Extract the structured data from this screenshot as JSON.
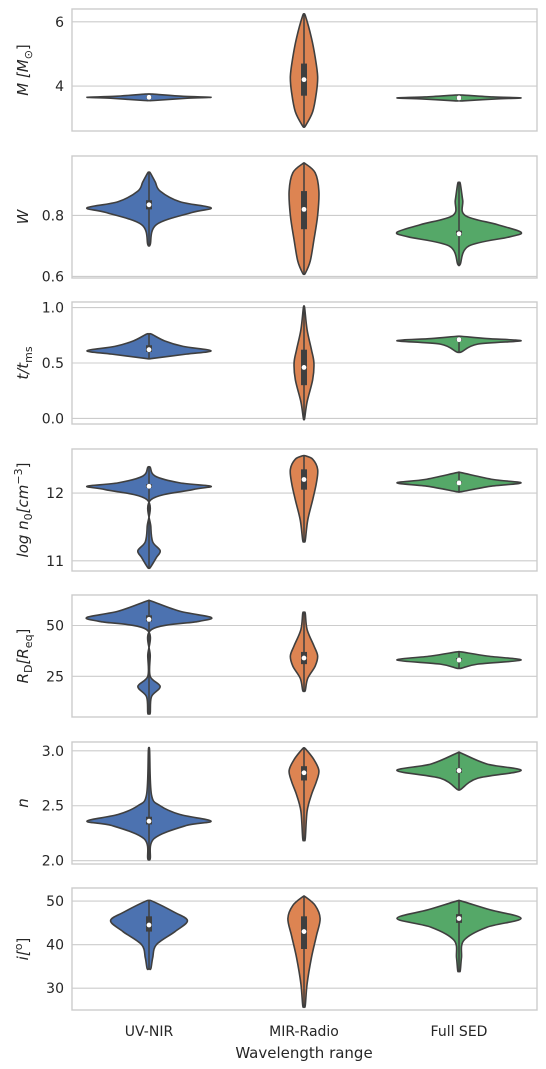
{
  "chart_data": {
    "type": "violin",
    "categories": [
      "UV-NIR",
      "MIR-Radio",
      "Full SED"
    ],
    "xlabel": "Wavelength range",
    "colors": {
      "UV-NIR": "#4c72b0",
      "MIR-Radio": "#dd8452",
      "Full SED": "#55a868"
    },
    "panels": [
      {
        "key": "M",
        "ylabel_main": "M [M",
        "ylabel_tail": "]",
        "ylabel_sub": "⊙",
        "ylim": [
          2.6,
          6.4
        ],
        "yticks": [
          4,
          6
        ],
        "violins": [
          {
            "category": "UV-NIR",
            "median": 3.65,
            "q1": 3.62,
            "q3": 3.68,
            "wmin": 3.55,
            "wmax": 3.75,
            "shape": [
              [
                3.55,
                0.08
              ],
              [
                3.62,
                0.62
              ],
              [
                3.65,
                1.0
              ],
              [
                3.68,
                0.55
              ],
              [
                3.75,
                0.06
              ]
            ]
          },
          {
            "category": "MIR-Radio",
            "median": 4.2,
            "q1": 3.7,
            "q3": 4.7,
            "wmin": 2.75,
            "wmax": 6.2,
            "shape": [
              [
                2.75,
                0.02
              ],
              [
                3.2,
                0.14
              ],
              [
                3.8,
                0.2
              ],
              [
                4.3,
                0.22
              ],
              [
                4.9,
                0.18
              ],
              [
                5.5,
                0.12
              ],
              [
                6.2,
                0.02
              ]
            ]
          },
          {
            "category": "Full SED",
            "median": 3.63,
            "q1": 3.6,
            "q3": 3.66,
            "wmin": 3.54,
            "wmax": 3.72,
            "shape": [
              [
                3.54,
                0.08
              ],
              [
                3.6,
                0.6
              ],
              [
                3.63,
                1.0
              ],
              [
                3.66,
                0.55
              ],
              [
                3.72,
                0.06
              ]
            ]
          }
        ]
      },
      {
        "key": "W",
        "ylabel_main": "W",
        "ylim": [
          0.595,
          0.995
        ],
        "yticks": [
          0.6,
          0.8
        ],
        "violins": [
          {
            "category": "UV-NIR",
            "median": 0.835,
            "q1": 0.82,
            "q3": 0.85,
            "wmin": 0.705,
            "wmax": 0.94,
            "shape": [
              [
                0.705,
                0.02
              ],
              [
                0.77,
                0.12
              ],
              [
                0.81,
                0.7
              ],
              [
                0.825,
                1.0
              ],
              [
                0.845,
                0.5
              ],
              [
                0.88,
                0.18
              ],
              [
                0.91,
                0.1
              ],
              [
                0.94,
                0.02
              ]
            ]
          },
          {
            "category": "MIR-Radio",
            "median": 0.82,
            "q1": 0.755,
            "q3": 0.88,
            "wmin": 0.61,
            "wmax": 0.97,
            "shape": [
              [
                0.61,
                0.02
              ],
              [
                0.65,
                0.1
              ],
              [
                0.72,
                0.16
              ],
              [
                0.8,
                0.22
              ],
              [
                0.88,
                0.24
              ],
              [
                0.94,
                0.18
              ],
              [
                0.97,
                0.02
              ]
            ]
          },
          {
            "category": "Full SED",
            "median": 0.74,
            "q1": 0.735,
            "q3": 0.75,
            "wmin": 0.64,
            "wmax": 0.905,
            "shape": [
              [
                0.64,
                0.02
              ],
              [
                0.7,
                0.16
              ],
              [
                0.73,
                0.82
              ],
              [
                0.745,
                1.0
              ],
              [
                0.77,
                0.62
              ],
              [
                0.8,
                0.1
              ],
              [
                0.85,
                0.06
              ],
              [
                0.905,
                0.02
              ]
            ]
          }
        ]
      },
      {
        "key": "t",
        "ylabel_main": "t/t",
        "ylabel_sub": "ms",
        "ylim": [
          -0.05,
          1.05
        ],
        "yticks": [
          0.0,
          0.5,
          1.0
        ],
        "ytick_labels": [
          "0.0",
          "0.5",
          "1.0"
        ],
        "violins": [
          {
            "category": "UV-NIR",
            "median": 0.62,
            "q1": 0.6,
            "q3": 0.66,
            "wmin": 0.54,
            "wmax": 0.76,
            "shape": [
              [
                0.54,
                0.04
              ],
              [
                0.58,
                0.6
              ],
              [
                0.61,
                1.0
              ],
              [
                0.65,
                0.55
              ],
              [
                0.7,
                0.25
              ],
              [
                0.76,
                0.04
              ]
            ]
          },
          {
            "category": "MIR-Radio",
            "median": 0.46,
            "q1": 0.3,
            "q3": 0.62,
            "wmin": 0.0,
            "wmax": 1.0,
            "shape": [
              [
                0.0,
                0.01
              ],
              [
                0.15,
                0.05
              ],
              [
                0.35,
                0.14
              ],
              [
                0.5,
                0.16
              ],
              [
                0.62,
                0.12
              ],
              [
                0.8,
                0.05
              ],
              [
                1.0,
                0.01
              ]
            ]
          },
          {
            "category": "Full SED",
            "median": 0.71,
            "q1": 0.7,
            "q3": 0.72,
            "wmin": 0.6,
            "wmax": 0.74,
            "shape": [
              [
                0.6,
                0.04
              ],
              [
                0.67,
                0.3
              ],
              [
                0.7,
                1.0
              ],
              [
                0.72,
                0.45
              ],
              [
                0.74,
                0.05
              ]
            ]
          }
        ]
      },
      {
        "key": "n0",
        "ylabel_main": "log n",
        "ylabel_sub": "0",
        "ylabel_unit": "[cm",
        "ylabel_sup": "−3",
        "ylabel_tail": "]",
        "ylim": [
          10.85,
          12.65
        ],
        "yticks": [
          11,
          12
        ],
        "violins": [
          {
            "category": "UV-NIR",
            "median": 12.1,
            "q1": 12.08,
            "q3": 12.13,
            "wmin": 10.9,
            "wmax": 12.38,
            "shape": [
              [
                10.9,
                0.02
              ],
              [
                11.05,
                0.12
              ],
              [
                11.15,
                0.18
              ],
              [
                11.28,
                0.06
              ],
              [
                11.5,
                0.03
              ],
              [
                11.9,
                0.03
              ],
              [
                12.05,
                0.7
              ],
              [
                12.1,
                1.0
              ],
              [
                12.15,
                0.5
              ],
              [
                12.25,
                0.1
              ],
              [
                12.38,
                0.02
              ]
            ]
          },
          {
            "category": "MIR-Radio",
            "median": 12.2,
            "q1": 12.05,
            "q3": 12.35,
            "wmin": 11.3,
            "wmax": 12.55,
            "shape": [
              [
                11.3,
                0.02
              ],
              [
                11.6,
                0.06
              ],
              [
                11.9,
                0.14
              ],
              [
                12.15,
                0.2
              ],
              [
                12.35,
                0.22
              ],
              [
                12.5,
                0.14
              ],
              [
                12.55,
                0.02
              ]
            ]
          },
          {
            "category": "Full SED",
            "median": 12.15,
            "q1": 12.14,
            "q3": 12.17,
            "wmin": 12.02,
            "wmax": 12.3,
            "shape": [
              [
                12.02,
                0.04
              ],
              [
                12.1,
                0.5
              ],
              [
                12.15,
                1.0
              ],
              [
                12.2,
                0.55
              ],
              [
                12.3,
                0.04
              ]
            ]
          }
        ]
      },
      {
        "key": "RD",
        "ylabel_main": "R",
        "ylabel_sub": "D",
        "ylabel_unit": "[R",
        "ylabel_sub2": "eq",
        "ylabel_tail": "]",
        "ylim": [
          5,
          65
        ],
        "yticks": [
          25,
          50
        ],
        "violins": [
          {
            "category": "UV-NIR",
            "median": 53,
            "q1": 52,
            "q3": 55,
            "wmin": 7,
            "wmax": 62,
            "shape": [
              [
                7,
                0.02
              ],
              [
                15,
                0.04
              ],
              [
                20,
                0.18
              ],
              [
                25,
                0.02
              ],
              [
                35,
                0.02
              ],
              [
                48,
                0.04
              ],
              [
                52,
                0.8
              ],
              [
                54,
                1.0
              ],
              [
                57,
                0.5
              ],
              [
                62,
                0.04
              ]
            ]
          },
          {
            "category": "MIR-Radio",
            "median": 34,
            "q1": 31,
            "q3": 37,
            "wmin": 18,
            "wmax": 56,
            "shape": [
              [
                18,
                0.02
              ],
              [
                24,
                0.06
              ],
              [
                30,
                0.18
              ],
              [
                35,
                0.22
              ],
              [
                40,
                0.16
              ],
              [
                48,
                0.05
              ],
              [
                56,
                0.02
              ]
            ]
          },
          {
            "category": "Full SED",
            "median": 33,
            "q1": 32.5,
            "q3": 34,
            "wmin": 29,
            "wmax": 37,
            "shape": [
              [
                29,
                0.04
              ],
              [
                31,
                0.3
              ],
              [
                33,
                1.0
              ],
              [
                35,
                0.45
              ],
              [
                37,
                0.04
              ]
            ]
          }
        ]
      },
      {
        "key": "n",
        "ylabel_main": "n",
        "ylim": [
          1.97,
          3.08
        ],
        "yticks": [
          2.0,
          2.5,
          3.0
        ],
        "ytick_labels": [
          "2.0",
          "2.5",
          "3.0"
        ],
        "violins": [
          {
            "category": "UV-NIR",
            "median": 2.36,
            "q1": 2.33,
            "q3": 2.4,
            "wmin": 2.02,
            "wmax": 3.0,
            "shape": [
              [
                2.02,
                0.02
              ],
              [
                2.2,
                0.08
              ],
              [
                2.32,
                0.6
              ],
              [
                2.36,
                1.0
              ],
              [
                2.42,
                0.5
              ],
              [
                2.5,
                0.18
              ],
              [
                2.6,
                0.04
              ],
              [
                3.0,
                0.01
              ]
            ]
          },
          {
            "category": "MIR-Radio",
            "median": 2.8,
            "q1": 2.73,
            "q3": 2.86,
            "wmin": 2.2,
            "wmax": 3.02,
            "shape": [
              [
                2.2,
                0.02
              ],
              [
                2.45,
                0.05
              ],
              [
                2.6,
                0.12
              ],
              [
                2.72,
                0.2
              ],
              [
                2.82,
                0.24
              ],
              [
                2.92,
                0.16
              ],
              [
                3.02,
                0.02
              ]
            ]
          },
          {
            "category": "Full SED",
            "median": 2.82,
            "q1": 2.8,
            "q3": 2.84,
            "wmin": 2.65,
            "wmax": 2.98,
            "shape": [
              [
                2.65,
                0.03
              ],
              [
                2.75,
                0.3
              ],
              [
                2.82,
                1.0
              ],
              [
                2.88,
                0.45
              ],
              [
                2.98,
                0.03
              ]
            ]
          }
        ]
      },
      {
        "key": "i",
        "ylabel_main": "i[",
        "ylabel_sup": "o",
        "ylabel_tail": "]",
        "ylim": [
          25,
          53
        ],
        "yticks": [
          30,
          40,
          50
        ],
        "violins": [
          {
            "category": "UV-NIR",
            "median": 44.5,
            "q1": 43,
            "q3": 46.5,
            "wmin": 34.5,
            "wmax": 50,
            "shape": [
              [
                34.5,
                0.03
              ],
              [
                37,
                0.06
              ],
              [
                40,
                0.12
              ],
              [
                43,
                0.42
              ],
              [
                45.5,
                0.62
              ],
              [
                47.5,
                0.4
              ],
              [
                50,
                0.05
              ]
            ]
          },
          {
            "category": "MIR-Radio",
            "median": 43,
            "q1": 39,
            "q3": 46.5,
            "wmin": 26,
            "wmax": 51,
            "shape": [
              [
                26,
                0.02
              ],
              [
                31,
                0.05
              ],
              [
                37,
                0.12
              ],
              [
                42,
                0.2
              ],
              [
                46,
                0.26
              ],
              [
                49,
                0.18
              ],
              [
                51,
                0.02
              ]
            ]
          },
          {
            "category": "Full SED",
            "median": 46,
            "q1": 45,
            "q3": 47,
            "wmin": 34,
            "wmax": 50,
            "shape": [
              [
                34,
                0.02
              ],
              [
                37,
                0.04
              ],
              [
                41,
                0.08
              ],
              [
                44,
                0.45
              ],
              [
                46,
                1.0
              ],
              [
                48,
                0.5
              ],
              [
                50,
                0.04
              ]
            ]
          }
        ]
      }
    ]
  }
}
